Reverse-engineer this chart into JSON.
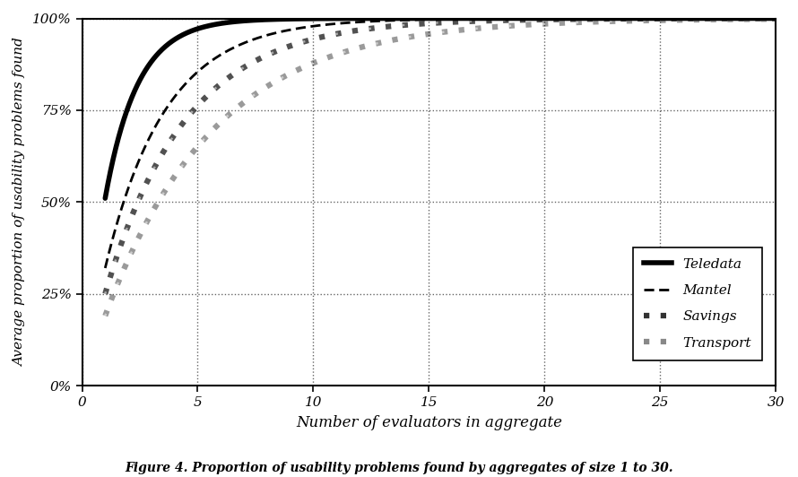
{
  "title": "Proportion of usability problems found",
  "xlabel": "Number of evaluators in aggregate",
  "ylabel": "Average proportion of usability problems found",
  "caption": "Figure 4. Proportion of usability problems found by aggregates of size 1 to 30.",
  "series": [
    {
      "label": "Teledata",
      "p": 0.51,
      "color": "#000000",
      "linewidth": 4.0,
      "style": "solid"
    },
    {
      "label": "Mantel",
      "p": 0.32,
      "color": "#000000",
      "linewidth": 2.0,
      "style": "dense_dash"
    },
    {
      "label": "Savings",
      "p": 0.25,
      "color": "#666666",
      "linewidth": 4.5,
      "style": "dotted_gray"
    },
    {
      "label": "Transport",
      "p": 0.19,
      "color": "#aaaaaa",
      "linewidth": 4.5,
      "style": "dotted_light"
    }
  ],
  "xlim": [
    0,
    30
  ],
  "ylim": [
    0,
    1.0
  ],
  "xticks": [
    0,
    5,
    10,
    15,
    20,
    25,
    30
  ],
  "yticks": [
    0,
    0.25,
    0.5,
    0.75,
    1.0
  ],
  "yticklabels": [
    "0%",
    "25%",
    "50%",
    "75%",
    "100%"
  ],
  "xticklabels": [
    "0",
    "5",
    "10",
    "15",
    "20",
    "25",
    "30"
  ],
  "grid_color": "#000000",
  "background_color": "#ffffff",
  "figwidth": 8.9,
  "figheight": 5.32,
  "dpi": 100
}
